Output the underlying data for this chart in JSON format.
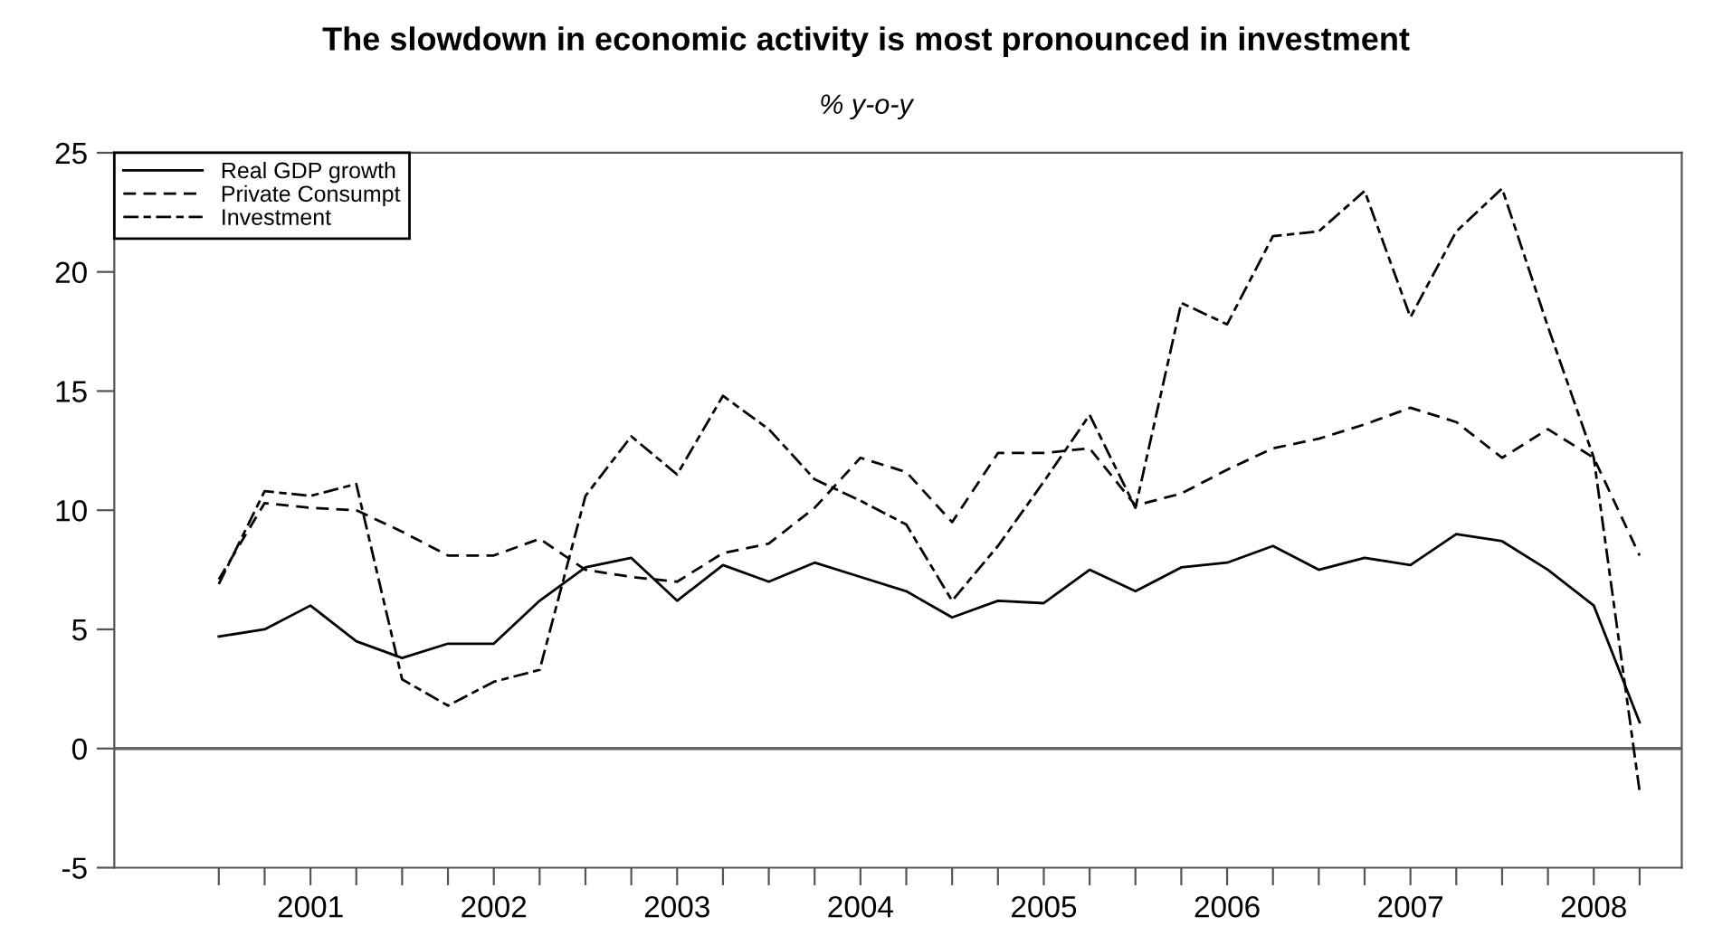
{
  "chart_data": {
    "type": "line",
    "title": "The slowdown in economic activity is most pronounced in investment",
    "subtitle": "% y-o-y",
    "x": [
      2001.0,
      2001.25,
      2001.5,
      2001.75,
      2002.0,
      2002.25,
      2002.5,
      2002.75,
      2003.0,
      2003.25,
      2003.5,
      2003.75,
      2004.0,
      2004.25,
      2004.5,
      2004.75,
      2005.0,
      2005.25,
      2005.5,
      2005.75,
      2006.0,
      2006.25,
      2006.5,
      2006.75,
      2007.0,
      2007.25,
      2007.5,
      2007.75,
      2008.0,
      2008.25,
      2008.5,
      2008.75
    ],
    "series": [
      {
        "name": "Real GDP growth",
        "color": "#000000",
        "line_style": "solid",
        "values": [
          4.7,
          5.0,
          6.0,
          4.5,
          3.8,
          4.4,
          4.4,
          6.2,
          7.6,
          8.0,
          6.2,
          7.7,
          7.0,
          7.8,
          7.2,
          6.6,
          5.5,
          6.2,
          6.1,
          7.5,
          6.6,
          7.6,
          7.8,
          8.5,
          7.5,
          8.0,
          7.7,
          9.0,
          8.7,
          7.5,
          6.0,
          1.1
        ]
      },
      {
        "name": "Private Consumpt",
        "color": "#000000",
        "line_style": "dashed",
        "values": [
          7.1,
          10.3,
          10.1,
          10.0,
          9.1,
          8.1,
          8.1,
          8.8,
          7.5,
          7.2,
          7.0,
          8.2,
          8.6,
          10.1,
          12.2,
          11.6,
          9.5,
          12.4,
          12.4,
          12.6,
          10.2,
          10.7,
          11.7,
          12.6,
          13.0,
          13.6,
          14.3,
          13.7,
          12.2,
          13.4,
          12.2,
          8.1
        ]
      },
      {
        "name": "Investment",
        "color": "#000000",
        "line_style": "dashdot",
        "values": [
          6.9,
          10.8,
          10.6,
          11.1,
          2.9,
          1.8,
          2.8,
          3.3,
          10.6,
          13.1,
          11.5,
          14.8,
          13.4,
          11.3,
          10.4,
          9.4,
          6.2,
          8.5,
          11.2,
          14.0,
          10.1,
          18.7,
          17.8,
          21.5,
          21.7,
          23.4,
          18.1,
          21.7,
          23.5,
          17.7,
          12.2,
          -1.8
        ]
      }
    ],
    "xlim": [
      2000.43,
      2008.98
    ],
    "xticks": [
      {
        "value": 2001.0,
        "label": null
      },
      {
        "value": 2001.25,
        "label": null
      },
      {
        "value": 2001.5,
        "label": "2001"
      },
      {
        "value": 2001.75,
        "label": null
      },
      {
        "value": 2002.0,
        "label": null
      },
      {
        "value": 2002.25,
        "label": null
      },
      {
        "value": 2002.5,
        "label": "2002"
      },
      {
        "value": 2002.75,
        "label": null
      },
      {
        "value": 2003.0,
        "label": null
      },
      {
        "value": 2003.25,
        "label": null
      },
      {
        "value": 2003.5,
        "label": "2003"
      },
      {
        "value": 2003.75,
        "label": null
      },
      {
        "value": 2004.0,
        "label": null
      },
      {
        "value": 2004.25,
        "label": null
      },
      {
        "value": 2004.5,
        "label": "2004"
      },
      {
        "value": 2004.75,
        "label": null
      },
      {
        "value": 2005.0,
        "label": null
      },
      {
        "value": 2005.25,
        "label": null
      },
      {
        "value": 2005.5,
        "label": "2005"
      },
      {
        "value": 2005.75,
        "label": null
      },
      {
        "value": 2006.0,
        "label": null
      },
      {
        "value": 2006.25,
        "label": null
      },
      {
        "value": 2006.5,
        "label": "2006"
      },
      {
        "value": 2006.75,
        "label": null
      },
      {
        "value": 2007.0,
        "label": null
      },
      {
        "value": 2007.25,
        "label": null
      },
      {
        "value": 2007.5,
        "label": "2007"
      },
      {
        "value": 2007.75,
        "label": null
      },
      {
        "value": 2008.0,
        "label": null
      },
      {
        "value": 2008.25,
        "label": null
      },
      {
        "value": 2008.5,
        "label": "2008"
      },
      {
        "value": 2008.75,
        "label": null
      }
    ],
    "ylim": [
      -5,
      25
    ],
    "yticks": [
      -5,
      0,
      5,
      10,
      15,
      20,
      25
    ],
    "ref_lines": [
      {
        "axis": "y",
        "value": 0,
        "label": null,
        "color": "#666666"
      }
    ],
    "grid": false,
    "legend": "top left",
    "marker": "none"
  }
}
